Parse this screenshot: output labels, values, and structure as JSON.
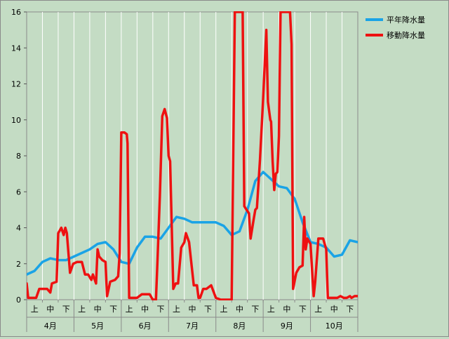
{
  "chart_data": {
    "type": "line",
    "title": "",
    "xlabel": "",
    "ylabel": "",
    "ylim": [
      0,
      16
    ],
    "yticks": [
      "0",
      "2",
      "4",
      "6",
      "8",
      "10",
      "12",
      "14",
      "16"
    ],
    "x_dekads": [
      "上",
      "中",
      "下"
    ],
    "x_months": [
      "4月",
      "5月",
      "6月",
      "7月",
      "8月",
      "9月",
      "10月"
    ],
    "grid": "vertical",
    "legend_position": "top-right",
    "series": [
      {
        "name": "平年降水量",
        "color": "#1aa3e6",
        "x": [
          0,
          0.5,
          1,
          1.5,
          2,
          2.5,
          3,
          3.5,
          4,
          4.5,
          5,
          5.5,
          6,
          6.5,
          7,
          7.5,
          8,
          8.5,
          9,
          9.5,
          10,
          10.5,
          11,
          11.5,
          12,
          12.5,
          13,
          13.5,
          14,
          14.5,
          15,
          15.5,
          16,
          16.5,
          17,
          17.5,
          18,
          18.5,
          19,
          19.5,
          20,
          20.5,
          21
        ],
        "values": [
          1.4,
          1.6,
          2.1,
          2.3,
          2.2,
          2.2,
          2.4,
          2.6,
          2.8,
          3.1,
          3.2,
          2.8,
          2.1,
          2.0,
          2.9,
          3.5,
          3.5,
          3.4,
          4.0,
          4.6,
          4.5,
          4.3,
          4.3,
          4.3,
          4.3,
          4.1,
          3.6,
          3.8,
          5.0,
          6.6,
          7.1,
          6.7,
          6.3,
          6.2,
          5.6,
          4.3,
          3.2,
          3.1,
          2.9,
          2.4,
          2.5,
          3.3,
          3.2
        ]
      },
      {
        "name": "移動降水量",
        "color": "#ee1111",
        "x": [
          0,
          0.1,
          0.3,
          0.6,
          0.8,
          1,
          1.3,
          1.5,
          1.6,
          1.9,
          2,
          2.2,
          2.35,
          2.45,
          2.55,
          2.75,
          2.95,
          3.2,
          3.5,
          3.7,
          3.9,
          4.1,
          4.2,
          4.4,
          4.5,
          4.6,
          4.8,
          5,
          5.1,
          5.3,
          5.6,
          5.8,
          5.9,
          6.0,
          6.2,
          6.35,
          6.4,
          6.5,
          6.7,
          7,
          7.3,
          7.6,
          7.8,
          8.0,
          8.2,
          8.3,
          8.45,
          8.6,
          8.75,
          8.9,
          9.0,
          9.1,
          9.3,
          9.45,
          9.6,
          9.8,
          10.0,
          10.1,
          10.3,
          10.6,
          10.8,
          10.9,
          11.0,
          11.2,
          11.4,
          11.7,
          12.0,
          12.3,
          12.5,
          12.7,
          12.85,
          13.0,
          13.2,
          13.45,
          13.7,
          13.8,
          13.95,
          14.1,
          14.2,
          14.4,
          14.5,
          14.6,
          14.8,
          15.0,
          15.2,
          15.3,
          15.45,
          15.5,
          15.6,
          15.7,
          15.8,
          15.9,
          16.0,
          16.1,
          16.3,
          16.5,
          16.7,
          16.8,
          16.9,
          17.1,
          17.3,
          17.5,
          17.6,
          17.7,
          17.8,
          18.0,
          18.2,
          18.3,
          18.5,
          18.6,
          18.7,
          18.8,
          19.0,
          19.1,
          19.2,
          19.3,
          19.5,
          19.7,
          19.9,
          20.1,
          20.3,
          20.5,
          20.6,
          20.8,
          21.0,
          21.0
        ],
        "values": [
          0.9,
          0.1,
          0.1,
          0.1,
          0.6,
          0.6,
          0.6,
          0.4,
          0.9,
          1.0,
          3.7,
          4.0,
          3.6,
          4.0,
          3.7,
          1.5,
          2.0,
          2.1,
          2.1,
          1.4,
          1.4,
          1.1,
          1.4,
          0.9,
          2.8,
          2.4,
          2.2,
          2.1,
          0.2,
          1.0,
          1.1,
          1.3,
          2.6,
          9.3,
          9.3,
          9.2,
          8.7,
          0.1,
          0.1,
          0.1,
          0.3,
          0.3,
          0.3,
          0.0,
          0.0,
          2.3,
          5.8,
          10.2,
          10.6,
          10.1,
          8.0,
          7.7,
          0.6,
          0.9,
          0.9,
          2.9,
          3.2,
          3.7,
          3.2,
          0.8,
          0.8,
          0.1,
          0.1,
          0.6,
          0.6,
          0.8,
          0.1,
          0.0,
          0.0,
          0.0,
          0.0,
          0.0,
          16.0,
          16.0,
          16.0,
          5.2,
          5.0,
          4.8,
          3.4,
          4.5,
          5.0,
          5.1,
          7.8,
          11.2,
          15.0,
          11.0,
          10.0,
          9.9,
          7.7,
          6.1,
          7.0,
          7.1,
          9.1,
          16.0,
          16.0,
          16.0,
          16.0,
          14.2,
          0.6,
          1.5,
          1.8,
          1.9,
          4.6,
          2.8,
          3.4,
          3.1,
          0.2,
          1.0,
          3.4,
          3.4,
          3.4,
          3.4,
          2.8,
          0.1,
          0.1,
          0.1,
          0.1,
          0.1,
          0.2,
          0.1,
          0.1,
          0.2,
          0.1,
          0.2,
          0.2,
          0.2
        ]
      }
    ]
  }
}
